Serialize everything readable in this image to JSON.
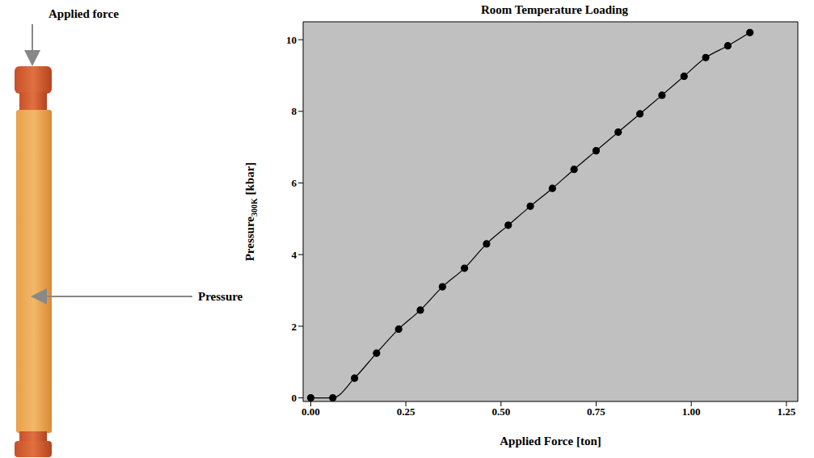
{
  "chart_data": {
    "type": "line",
    "title": "Room Temperature Loading",
    "xlabel": "Applied Force [ton]",
    "ylabel": {
      "text": "Pressure",
      "subscript": "300K",
      "suffix": " [kbar]"
    },
    "annotations": [
      "Applied force",
      "Pressure"
    ],
    "x": [
      0,
      0.058,
      0.115,
      0.173,
      0.231,
      0.288,
      0.346,
      0.404,
      0.462,
      0.519,
      0.577,
      0.635,
      0.692,
      0.75,
      0.808,
      0.865,
      0.923,
      0.981,
      1.038,
      1.096,
      1.154
    ],
    "values": [
      0,
      0,
      0.55,
      1.25,
      1.92,
      2.45,
      3.1,
      3.62,
      4.3,
      4.82,
      5.35,
      5.85,
      6.38,
      6.9,
      7.42,
      7.93,
      8.45,
      8.98,
      9.5,
      9.83,
      10.2
    ],
    "color": "#000000",
    "marker": "circle",
    "xlim": [
      -0.02,
      1.28
    ],
    "ylim": [
      -0.1,
      10.5
    ],
    "xticks": [
      {
        "value": 0,
        "label": "0.00"
      },
      {
        "value": 0.25,
        "label": "0.25"
      },
      {
        "value": 0.5,
        "label": "0.50"
      },
      {
        "value": 0.75,
        "label": "0.75"
      },
      {
        "value": 1,
        "label": "1.00"
      },
      {
        "value": 1.25,
        "label": "1.25"
      }
    ],
    "yticks": [
      0,
      2,
      4,
      6,
      8,
      10
    ],
    "grid": false
  }
}
